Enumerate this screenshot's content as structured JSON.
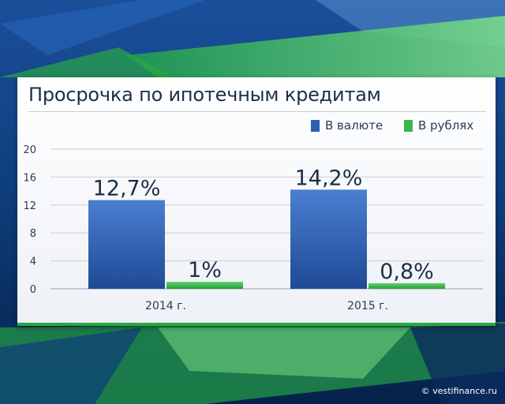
{
  "chart_data": {
    "type": "bar",
    "title": "Просрочка по ипотечным кредитам",
    "categories": [
      "2014 г.",
      "2015 г."
    ],
    "series": [
      {
        "name": "В валюте",
        "values": [
          12.7,
          14.2
        ],
        "labels": [
          "12,7%",
          "14,2%"
        ],
        "color": "#2e5fb0"
      },
      {
        "name": "В рублях",
        "values": [
          1,
          0.8
        ],
        "labels": [
          "1%",
          "0,8%"
        ],
        "color": "#35b848"
      }
    ],
    "ylim": [
      0,
      20
    ],
    "yticks": [
      "0",
      "4",
      "8",
      "12",
      "16",
      "20"
    ],
    "grid": true,
    "legend": "top-right"
  },
  "watermark": "© vestifinance.ru"
}
